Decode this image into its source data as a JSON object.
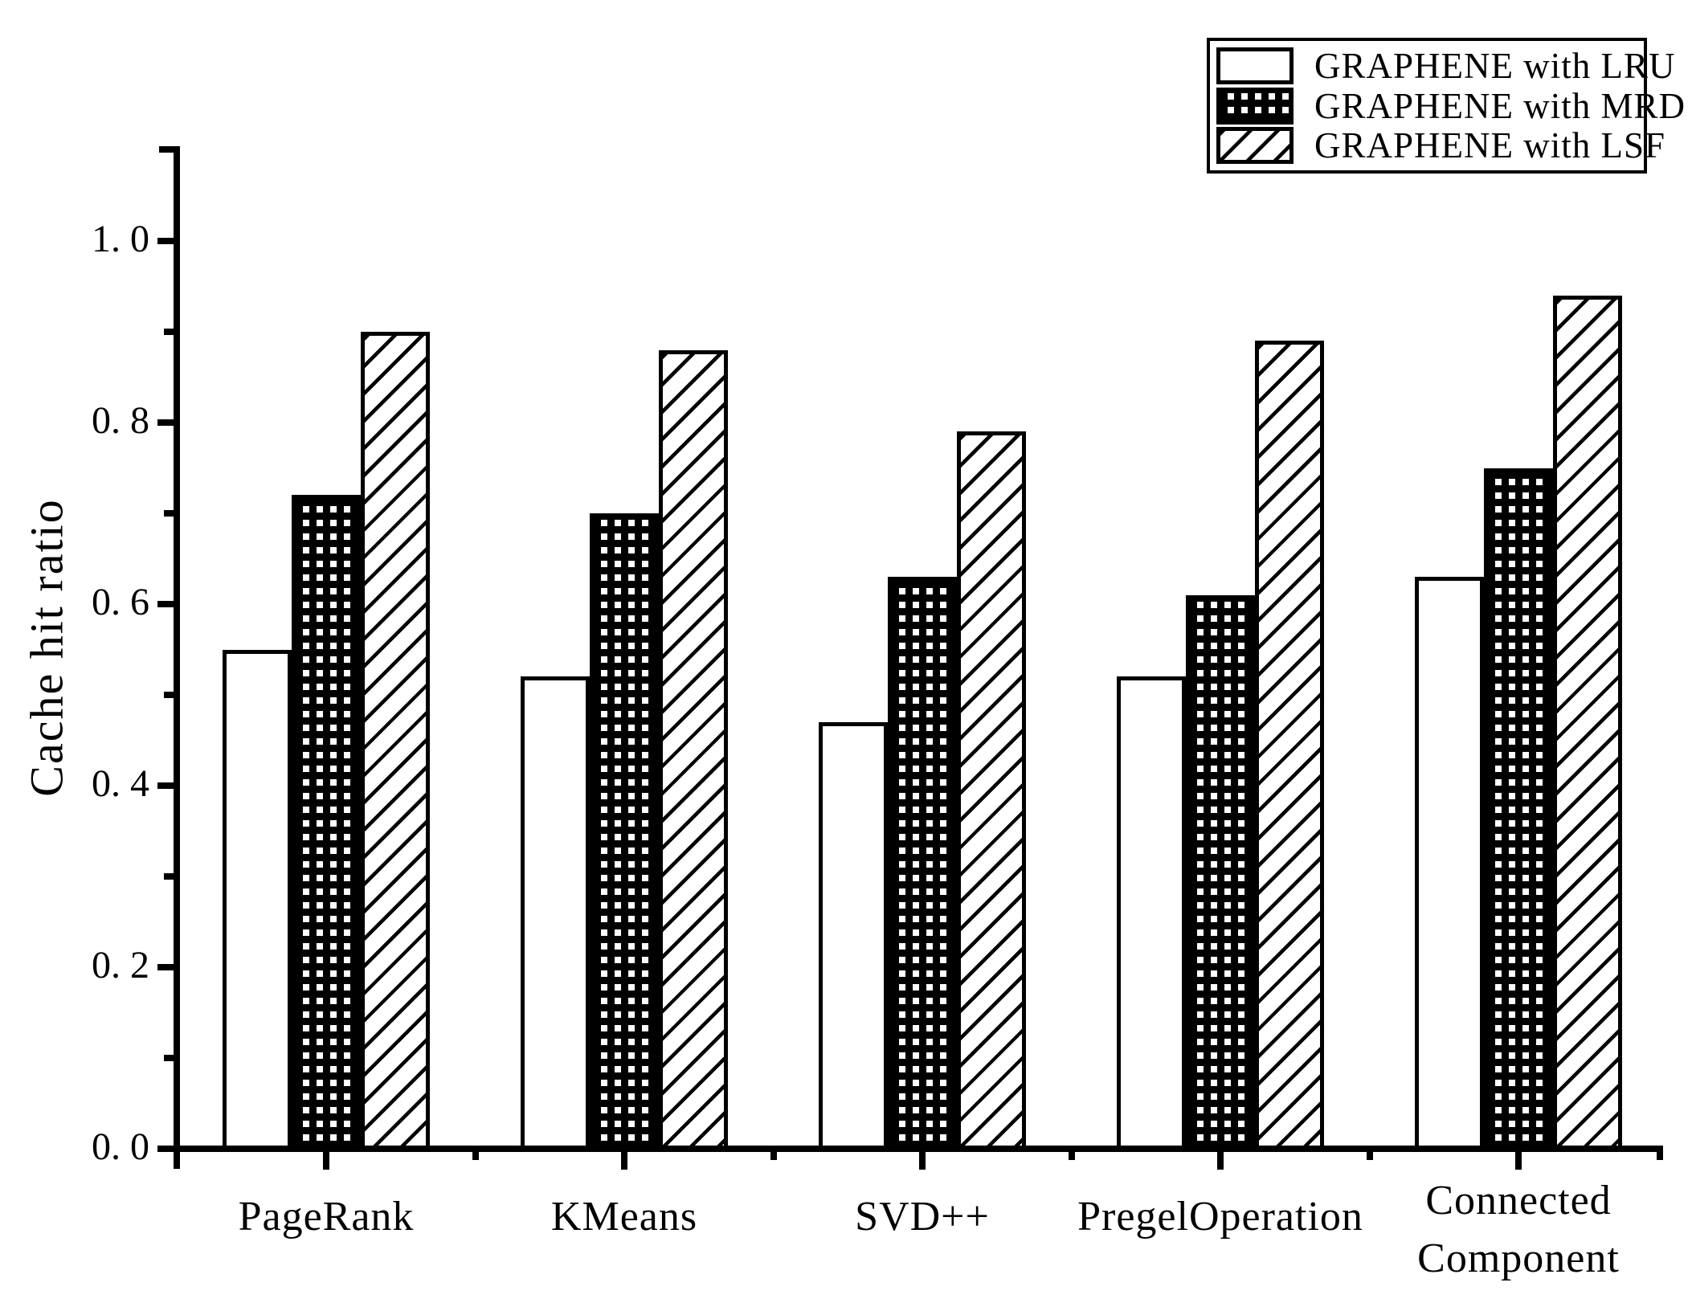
{
  "chart_data": {
    "type": "bar",
    "title": "",
    "xlabel": "",
    "ylabel": "Cache hit ratio",
    "ylim": [
      0,
      1.1
    ],
    "grid": false,
    "legend_position": "top-right",
    "background_color": "#ffffff",
    "foreground_color": "#000000",
    "yticks_major": [
      0.0,
      0.2,
      0.4,
      0.6,
      0.8,
      1.0
    ],
    "ytick_labels": [
      "0. 0",
      "0. 2",
      "0. 4",
      "0. 6",
      "0. 8",
      "1. 0"
    ],
    "yticks_minor": [
      0.1,
      0.3,
      0.5,
      0.7,
      0.9
    ],
    "categories": [
      {
        "label": "PageRank",
        "lines": [
          "PageRank"
        ]
      },
      {
        "label": "KMeans",
        "lines": [
          "KMeans"
        ]
      },
      {
        "label": "SVD++",
        "lines": [
          "SVD++"
        ]
      },
      {
        "label": "PregelOperation",
        "lines": [
          "PregelOperation"
        ]
      },
      {
        "label": "Connected Component",
        "lines": [
          "Connected",
          "Component"
        ]
      }
    ],
    "series": [
      {
        "name": "GRAPHENE with LRU",
        "pattern": "solid-white",
        "values": [
          0.55,
          0.52,
          0.47,
          0.52,
          0.63
        ]
      },
      {
        "name": "GRAPHENE with MRD",
        "pattern": "dotted-black",
        "values": [
          0.72,
          0.7,
          0.63,
          0.61,
          0.75
        ]
      },
      {
        "name": "GRAPHENE with LSF",
        "pattern": "diagonal-hatch",
        "values": [
          0.9,
          0.88,
          0.79,
          0.89,
          0.94
        ]
      }
    ]
  },
  "legend": {
    "items": [
      {
        "label": "GRAPHENE with LRU",
        "pattern": "solid-white"
      },
      {
        "label": "GRAPHENE with MRD",
        "pattern": "dotted-black"
      },
      {
        "label": "GRAPHENE with LSF",
        "pattern": "diagonal-hatch"
      }
    ]
  }
}
